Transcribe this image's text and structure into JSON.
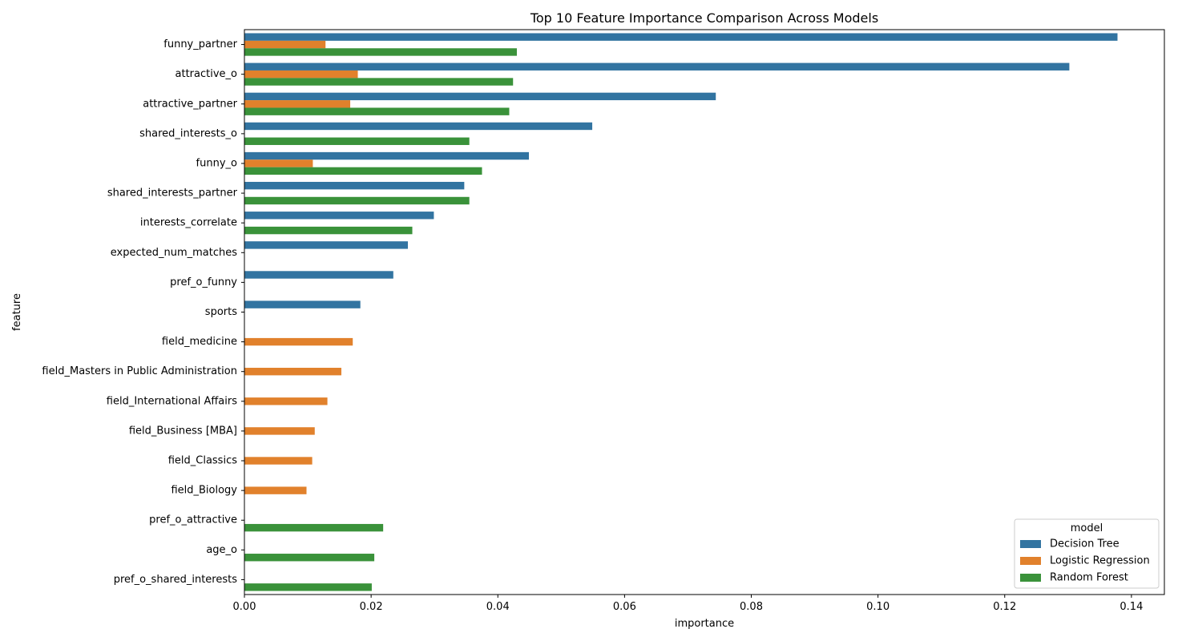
{
  "chart_data": {
    "type": "bar",
    "orientation": "horizontal",
    "title": "Top 10 Feature Importance Comparison Across Models",
    "xlabel": "importance",
    "ylabel": "feature",
    "xlim": [
      0,
      0.1452
    ],
    "x_ticks": [
      0.0,
      0.02,
      0.04,
      0.06,
      0.08,
      0.1,
      0.12,
      0.14
    ],
    "x_tick_labels": [
      "0.00",
      "0.02",
      "0.04",
      "0.06",
      "0.08",
      "0.10",
      "0.12",
      "0.14"
    ],
    "grid": false,
    "legend": {
      "title": "model",
      "placement": "lower-right"
    },
    "categories": [
      "funny_partner",
      "attractive_o",
      "attractive_partner",
      "shared_interests_o",
      "funny_o",
      "shared_interests_partner",
      "interests_correlate",
      "expected_num_matches",
      "pref_o_funny",
      "sports",
      "field_medicine",
      "field_Masters in Public Administration",
      "field_International Affairs",
      "field_Business [MBA]",
      "field_Classics",
      "field_Biology",
      "pref_o_attractive",
      "age_o",
      "pref_o_shared_interests"
    ],
    "series": [
      {
        "name": "Decision Tree",
        "color": "#3274a1",
        "values": [
          0.1378,
          0.1302,
          0.0744,
          0.0549,
          0.0449,
          0.0347,
          0.0299,
          0.0258,
          0.0235,
          0.0183,
          null,
          null,
          null,
          null,
          null,
          null,
          null,
          null,
          null
        ]
      },
      {
        "name": "Logistic Regression",
        "color": "#e1812c",
        "values": [
          0.0128,
          0.0179,
          0.0167,
          null,
          0.0108,
          null,
          null,
          null,
          null,
          null,
          0.0171,
          0.0153,
          0.0131,
          0.0111,
          0.0107,
          0.0098,
          null,
          null,
          null
        ]
      },
      {
        "name": "Random Forest",
        "color": "#3a923a",
        "values": [
          0.043,
          0.0424,
          0.0418,
          0.0355,
          0.0375,
          0.0355,
          0.0265,
          null,
          null,
          null,
          null,
          null,
          null,
          null,
          null,
          null,
          0.0219,
          0.0205,
          0.0201
        ]
      }
    ]
  }
}
